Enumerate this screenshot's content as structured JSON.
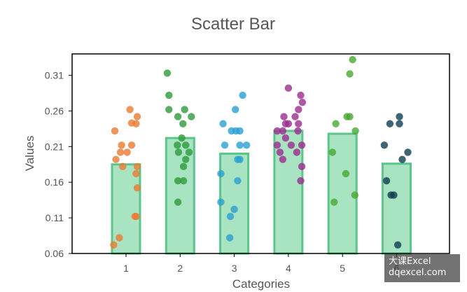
{
  "chart_data": {
    "type": "bar",
    "title": "Scatter Bar",
    "xlabel": "Categories",
    "ylabel": "Values",
    "categories": [
      "1",
      "2",
      "3",
      "4",
      "5",
      "6"
    ],
    "values": [
      0.185,
      0.222,
      0.2,
      0.232,
      0.228,
      0.186
    ],
    "ylim": [
      0.06,
      0.34
    ],
    "yticks": [
      "0.06",
      "0.11",
      "0.16",
      "0.21",
      "0.26",
      "0.31"
    ],
    "ytick_values": [
      0.06,
      0.11,
      0.16,
      0.21,
      0.26,
      0.31
    ],
    "grid": false,
    "bar_color": "#a8e3c2",
    "bar_edge_color": "#5cc589",
    "scatter": [
      {
        "category": "1",
        "color": "#e87a35",
        "points": [
          [
            -0.2,
            0.232
          ],
          [
            0.07,
            0.262
          ],
          [
            0.2,
            0.252
          ],
          [
            0.18,
            0.242
          ],
          [
            0.1,
            0.243
          ],
          [
            -0.08,
            0.212
          ],
          [
            0.1,
            0.212
          ],
          [
            -0.1,
            0.202
          ],
          [
            0.02,
            0.202
          ],
          [
            -0.18,
            0.192
          ],
          [
            0.2,
            0.182
          ],
          [
            -0.06,
            0.182
          ],
          [
            0.18,
            0.172
          ],
          [
            0.2,
            0.152
          ],
          [
            0.16,
            0.112
          ],
          [
            0.18,
            0.112
          ],
          [
            -0.12,
            0.082
          ],
          [
            -0.22,
            0.072
          ]
        ]
      },
      {
        "category": "2",
        "color": "#2e9a3c",
        "points": [
          [
            -0.23,
            0.313
          ],
          [
            -0.2,
            0.282
          ],
          [
            -0.2,
            0.262
          ],
          [
            0.08,
            0.262
          ],
          [
            -0.04,
            0.252
          ],
          [
            0.2,
            0.252
          ],
          [
            0.05,
            0.242
          ],
          [
            0.03,
            0.222
          ],
          [
            -0.05,
            0.212
          ],
          [
            0.1,
            0.212
          ],
          [
            0.16,
            0.202
          ],
          [
            -0.03,
            0.202
          ],
          [
            0.1,
            0.192
          ],
          [
            0.06,
            0.182
          ],
          [
            -0.04,
            0.162
          ],
          [
            0.06,
            0.162
          ],
          [
            -0.04,
            0.132
          ]
        ]
      },
      {
        "category": "3",
        "color": "#2a9fd1",
        "points": [
          [
            0.15,
            0.282
          ],
          [
            0.02,
            0.262
          ],
          [
            -0.2,
            0.242
          ],
          [
            -0.05,
            0.232
          ],
          [
            0.03,
            0.232
          ],
          [
            0.1,
            0.232
          ],
          [
            -0.17,
            0.212
          ],
          [
            0.1,
            0.212
          ],
          [
            0.22,
            0.212
          ],
          [
            0.1,
            0.192
          ],
          [
            0.06,
            0.192
          ],
          [
            -0.24,
            0.172
          ],
          [
            0.06,
            0.162
          ],
          [
            -0.24,
            0.132
          ],
          [
            0.0,
            0.122
          ],
          [
            -0.07,
            0.112
          ],
          [
            -0.08,
            0.082
          ]
        ]
      },
      {
        "category": "4",
        "color": "#9b2c8e",
        "points": [
          [
            0.0,
            0.292
          ],
          [
            0.22,
            0.282
          ],
          [
            0.25,
            0.272
          ],
          [
            0.18,
            0.262
          ],
          [
            -0.08,
            0.252
          ],
          [
            0.12,
            0.252
          ],
          [
            0.0,
            0.242
          ],
          [
            -0.05,
            0.242
          ],
          [
            0.18,
            0.242
          ],
          [
            -0.2,
            0.232
          ],
          [
            -0.1,
            0.232
          ],
          [
            0.17,
            0.232
          ],
          [
            -0.05,
            0.222
          ],
          [
            -0.2,
            0.212
          ],
          [
            0.05,
            0.212
          ],
          [
            0.24,
            0.212
          ],
          [
            -0.15,
            0.202
          ],
          [
            0.15,
            0.202
          ],
          [
            -0.1,
            0.192
          ],
          [
            0.24,
            0.182
          ],
          [
            0.22,
            0.162
          ]
        ]
      },
      {
        "category": "5",
        "color": "#4aa832",
        "points": [
          [
            0.18,
            0.332
          ],
          [
            0.13,
            0.312
          ],
          [
            0.08,
            0.252
          ],
          [
            0.13,
            0.252
          ],
          [
            -0.12,
            0.242
          ],
          [
            0.23,
            0.232
          ],
          [
            -0.18,
            0.202
          ],
          [
            0.06,
            0.172
          ],
          [
            0.22,
            0.142
          ],
          [
            -0.15,
            0.132
          ]
        ]
      },
      {
        "category": "6",
        "color": "#0f3d52",
        "points": [
          [
            0.05,
            0.252
          ],
          [
            -0.12,
            0.242
          ],
          [
            0.05,
            0.242
          ],
          [
            -0.22,
            0.212
          ],
          [
            0.2,
            0.202
          ],
          [
            0.1,
            0.192
          ],
          [
            -0.18,
            0.162
          ],
          [
            -0.1,
            0.142
          ],
          [
            -0.05,
            0.142
          ],
          [
            0.02,
            0.072
          ]
        ]
      }
    ]
  },
  "watermark": {
    "line1": "大课Excel",
    "line2": "dqexcel.com"
  }
}
